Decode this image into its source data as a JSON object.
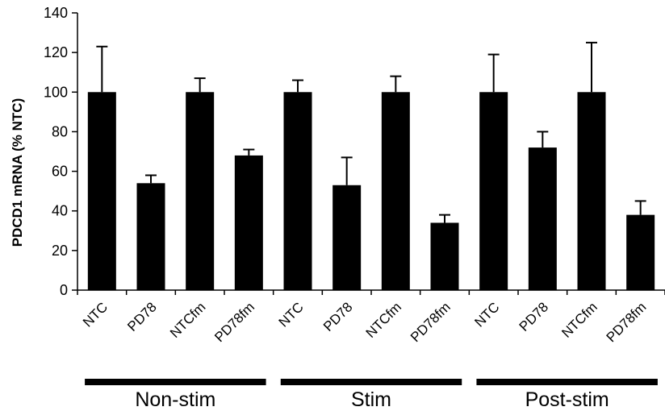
{
  "chart_data": {
    "type": "bar",
    "ylabel": "PDCD1 mRNA (% NTC)",
    "xlabel": "",
    "ylim": [
      0,
      140
    ],
    "yticks": [
      0,
      20,
      40,
      60,
      80,
      100,
      120,
      140
    ],
    "categories": [
      "NTC",
      "PD78",
      "NTCfm",
      "PD78fm",
      "NTC",
      "PD78",
      "NTCfm",
      "PD78fm",
      "NTC",
      "PD78",
      "NTCfm",
      "PD78fm"
    ],
    "values": [
      100,
      54,
      100,
      68,
      100,
      53,
      100,
      34,
      100,
      72,
      100,
      38
    ],
    "error": [
      23,
      4,
      7,
      3,
      6,
      14,
      8,
      4,
      19,
      8,
      25,
      7
    ],
    "groups": [
      {
        "label": "Non-stim",
        "categories": [
          0,
          1,
          2,
          3
        ]
      },
      {
        "label": "Stim",
        "categories": [
          4,
          5,
          6,
          7
        ]
      },
      {
        "label": "Post-stim",
        "categories": [
          8,
          9,
          10,
          11
        ]
      }
    ],
    "bar_color": "#000000",
    "grid": false,
    "legend": "none"
  }
}
